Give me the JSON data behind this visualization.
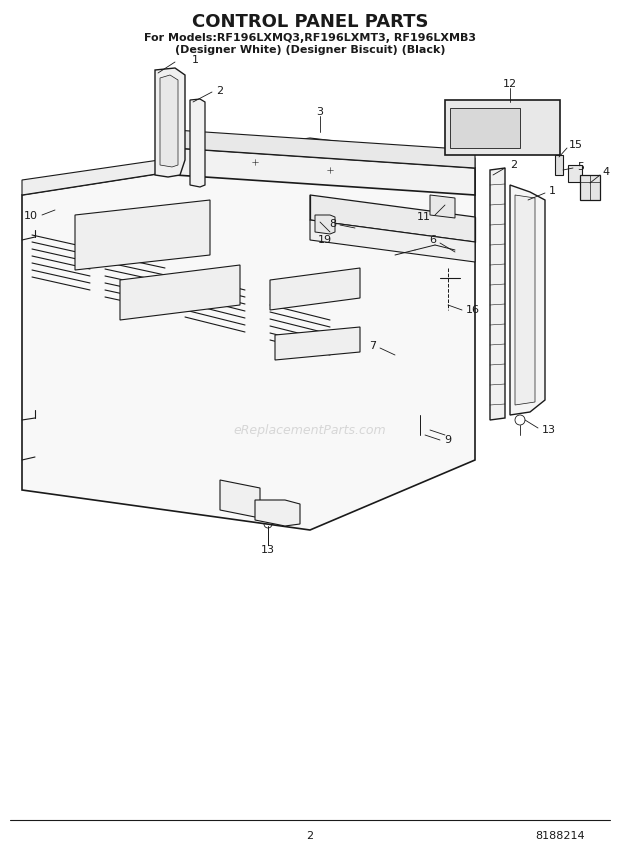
{
  "title": "CONTROL PANEL PARTS",
  "subtitle_line1": "For Models:RF196LXMQ3,RF196LXMT3, RF196LXMB3",
  "subtitle_line2": "(Designer White) (Designer Biscuit) (Black)",
  "page_number": "2",
  "part_number": "8188214",
  "watermark": "eReplacementParts.com",
  "background_color": "#ffffff",
  "line_color": "#1a1a1a",
  "title_fontsize": 13,
  "subtitle_fontsize": 8,
  "label_fontsize": 8,
  "footer_fontsize": 8
}
